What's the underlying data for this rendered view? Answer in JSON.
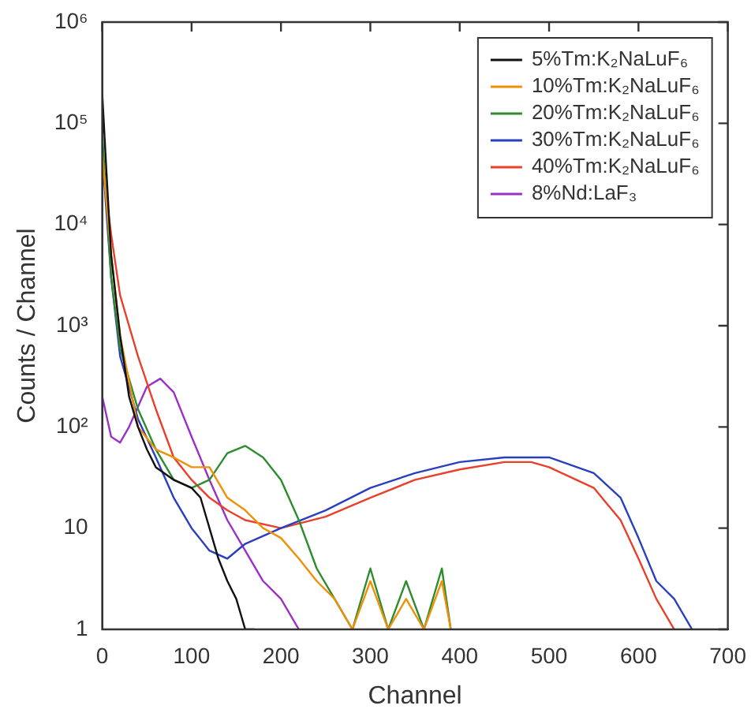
{
  "chart_data": {
    "type": "line",
    "xlabel": "Channel",
    "ylabel": "Counts / Channel",
    "log": "y",
    "grid": false,
    "legend": "top right",
    "marker": "none",
    "line_style": "solid",
    "xlim": [
      0,
      700
    ],
    "xticks": [
      0,
      100,
      200,
      300,
      400,
      500,
      600,
      700
    ],
    "ylim": [
      1,
      1000000
    ],
    "yticks": [
      {
        "value": 1,
        "label": "1"
      },
      {
        "value": 10,
        "label": "10"
      },
      {
        "value": 100,
        "label": "10²"
      },
      {
        "value": 1000,
        "label": "10³"
      },
      {
        "value": 10000,
        "label": "10⁴"
      },
      {
        "value": 100000,
        "label": "10⁵"
      },
      {
        "value": 1000000,
        "label": "10⁶"
      }
    ],
    "series": [
      {
        "name": "5%Tm:K₂NaLuF₆",
        "color": "#111111",
        "x": [
          0,
          5,
          10,
          20,
          30,
          40,
          50,
          60,
          80,
          100,
          110,
          120,
          130,
          140,
          150,
          160,
          170
        ],
        "values": [
          200000,
          30000,
          5000,
          800,
          200,
          100,
          60,
          40,
          30,
          25,
          20,
          10,
          5,
          3,
          2,
          1,
          1
        ]
      },
      {
        "name": "10%Tm:K₂NaLuF₆",
        "color": "#f0900a",
        "x": [
          0,
          10,
          20,
          40,
          60,
          80,
          100,
          120,
          140,
          160,
          180,
          200,
          220,
          240,
          260,
          280,
          300,
          320,
          340,
          360,
          380,
          390
        ],
        "values": [
          50000,
          5000,
          800,
          100,
          60,
          50,
          40,
          40,
          20,
          15,
          10,
          8,
          5,
          3,
          2,
          1,
          3,
          1,
          2,
          1,
          3,
          1
        ]
      },
      {
        "name": "20%Tm:K₂NaLuF₆",
        "color": "#2e8b2e",
        "x": [
          0,
          10,
          20,
          40,
          60,
          80,
          100,
          120,
          140,
          160,
          180,
          200,
          220,
          240,
          260,
          280,
          300,
          320,
          340,
          360,
          380,
          390
        ],
        "values": [
          80000,
          3000,
          600,
          150,
          60,
          30,
          25,
          30,
          55,
          65,
          50,
          30,
          12,
          4,
          2,
          1,
          4,
          1,
          3,
          1,
          4,
          1
        ]
      },
      {
        "name": "30%Tm:K₂NaLuF₆",
        "color": "#2a3fc0",
        "x": [
          0,
          10,
          20,
          40,
          60,
          80,
          100,
          120,
          140,
          160,
          200,
          250,
          300,
          350,
          400,
          450,
          500,
          550,
          580,
          600,
          620,
          640,
          660
        ],
        "values": [
          50000,
          3000,
          500,
          120,
          50,
          20,
          10,
          6,
          5,
          7,
          10,
          15,
          25,
          35,
          45,
          50,
          50,
          35,
          20,
          8,
          3,
          2,
          1
        ]
      },
      {
        "name": "40%Tm:K₂NaLuF₆",
        "color": "#e8402a",
        "x": [
          0,
          10,
          20,
          40,
          60,
          80,
          100,
          120,
          140,
          160,
          200,
          250,
          300,
          350,
          400,
          450,
          480,
          500,
          550,
          580,
          600,
          620,
          640
        ],
        "values": [
          40000,
          8000,
          2000,
          500,
          150,
          50,
          30,
          20,
          15,
          12,
          10,
          13,
          20,
          30,
          38,
          45,
          45,
          40,
          25,
          12,
          5,
          2,
          1
        ]
      },
      {
        "name": "8%Nd:LaF₃",
        "color": "#9a30c8",
        "x": [
          0,
          10,
          20,
          30,
          50,
          65,
          80,
          100,
          120,
          140,
          160,
          180,
          200,
          220
        ],
        "values": [
          200,
          80,
          70,
          100,
          250,
          300,
          220,
          80,
          30,
          12,
          6,
          3,
          2,
          1
        ]
      }
    ]
  }
}
